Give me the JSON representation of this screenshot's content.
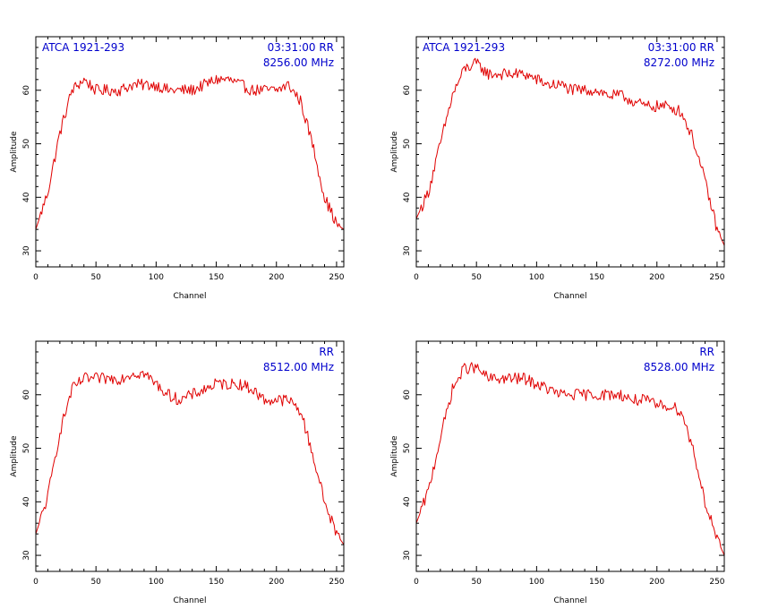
{
  "colors": {
    "trace": "#e00000",
    "annotation": "#0000cc",
    "axes": "#000000"
  },
  "chart_data": [
    {
      "type": "line",
      "source_label": "ATCA 1921-293",
      "time_label": "03:31:00",
      "polarization": "RR",
      "frequency_label": "8256.00 MHz",
      "xlabel": "Channel",
      "ylabel": "Amplitude",
      "xlim": [
        0,
        256
      ],
      "ylim": [
        27,
        70
      ],
      "xticks": [
        0,
        50,
        100,
        150,
        200,
        250
      ],
      "yticks": [
        30,
        40,
        50,
        60
      ],
      "grid": false,
      "series": [
        {
          "x": [
            0,
            10,
            20,
            30,
            40,
            50,
            60,
            70,
            80,
            90,
            100,
            110,
            120,
            130,
            140,
            150,
            160,
            170,
            180,
            190,
            200,
            210,
            220,
            230,
            240,
            250,
            256
          ],
          "values": [
            34,
            41,
            52,
            60,
            62,
            60,
            60,
            60,
            61,
            61,
            61,
            60,
            60,
            60,
            61,
            62,
            62,
            61,
            60,
            60,
            60,
            61,
            58,
            50,
            40,
            35,
            34
          ]
        }
      ]
    },
    {
      "type": "line",
      "source_label": "ATCA 1921-293",
      "time_label": "03:31:00",
      "polarization": "RR",
      "frequency_label": "8272.00 MHz",
      "xlabel": "Channel",
      "ylabel": "Amplitude",
      "xlim": [
        0,
        256
      ],
      "ylim": [
        27,
        70
      ],
      "xticks": [
        0,
        50,
        100,
        150,
        200,
        250
      ],
      "yticks": [
        30,
        40,
        50,
        60
      ],
      "grid": false,
      "series": [
        {
          "x": [
            0,
            10,
            20,
            30,
            40,
            50,
            60,
            70,
            80,
            90,
            100,
            110,
            120,
            130,
            140,
            150,
            160,
            170,
            180,
            190,
            200,
            210,
            220,
            230,
            240,
            250,
            256
          ],
          "values": [
            36,
            41,
            50,
            59,
            64,
            65,
            63,
            63,
            63,
            63,
            62,
            61,
            61,
            60,
            60,
            60,
            59,
            59,
            58,
            57,
            57,
            57,
            56,
            51,
            43,
            34,
            31
          ]
        }
      ]
    },
    {
      "type": "line",
      "source_label": "",
      "time_label": "",
      "polarization": "RR",
      "frequency_label": "8512.00 MHz",
      "xlabel": "Channel",
      "ylabel": "Amplitude",
      "xlim": [
        0,
        256
      ],
      "ylim": [
        27,
        70
      ],
      "xticks": [
        0,
        50,
        100,
        150,
        200,
        250
      ],
      "yticks": [
        30,
        40,
        50,
        60
      ],
      "grid": false,
      "series": [
        {
          "x": [
            0,
            10,
            20,
            30,
            40,
            50,
            60,
            70,
            80,
            90,
            100,
            110,
            120,
            130,
            140,
            150,
            160,
            170,
            180,
            190,
            200,
            210,
            220,
            230,
            240,
            250,
            256
          ],
          "values": [
            34,
            41,
            53,
            61,
            63,
            63,
            63,
            63,
            64,
            64,
            62,
            60,
            59,
            60,
            61,
            62,
            62,
            62,
            61,
            59,
            59,
            59,
            57,
            49,
            40,
            34,
            32
          ]
        }
      ]
    },
    {
      "type": "line",
      "source_label": "",
      "time_label": "",
      "polarization": "RR",
      "frequency_label": "8528.00 MHz",
      "xlabel": "Channel",
      "ylabel": "Amplitude",
      "xlim": [
        0,
        256
      ],
      "ylim": [
        27,
        70
      ],
      "xticks": [
        0,
        50,
        100,
        150,
        200,
        250
      ],
      "yticks": [
        30,
        40,
        50,
        60
      ],
      "grid": false,
      "series": [
        {
          "x": [
            0,
            10,
            20,
            30,
            40,
            50,
            60,
            70,
            80,
            90,
            100,
            110,
            120,
            130,
            140,
            150,
            160,
            170,
            180,
            190,
            200,
            210,
            220,
            230,
            240,
            250,
            256
          ],
          "values": [
            36,
            42,
            52,
            61,
            65,
            65,
            63,
            63,
            63,
            63,
            62,
            61,
            60,
            60,
            60,
            60,
            60,
            60,
            59,
            59,
            58,
            58,
            57,
            50,
            40,
            33,
            30
          ]
        }
      ]
    }
  ]
}
